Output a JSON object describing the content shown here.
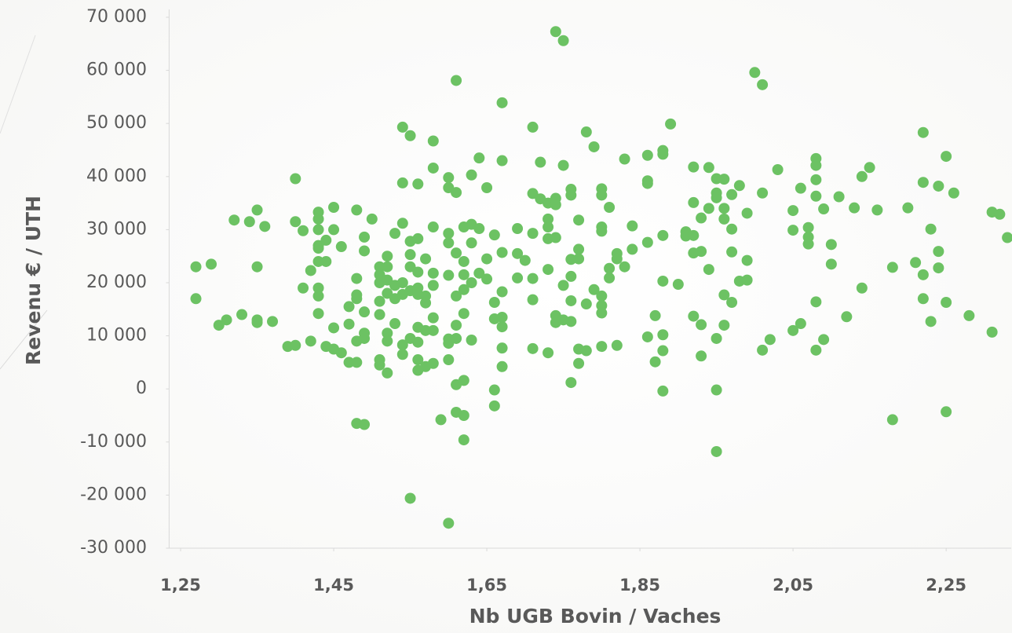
{
  "chart_data": {
    "type": "scatter",
    "x_label": "Nb UGB Bovin / Vaches",
    "y_label": "Revenu € / UTH",
    "color": "#6cc263",
    "xlim": [
      1.235,
      2.335
    ],
    "ylim": [
      -30000,
      70000
    ],
    "xticks": [
      {
        "value": 1.25,
        "label": "1,25"
      },
      {
        "value": 1.45,
        "label": "1,45"
      },
      {
        "value": 1.65,
        "label": "1,65"
      },
      {
        "value": 1.85,
        "label": "1,85"
      },
      {
        "value": 2.05,
        "label": "2,05"
      },
      {
        "value": 2.25,
        "label": "2,25"
      }
    ],
    "yticks": [
      {
        "value": 70000,
        "label": "70 000"
      },
      {
        "value": 60000,
        "label": "60 000"
      },
      {
        "value": 50000,
        "label": "50 000"
      },
      {
        "value": 40000,
        "label": "40 000"
      },
      {
        "value": 30000,
        "label": "30 000"
      },
      {
        "value": 20000,
        "label": "20 000"
      },
      {
        "value": 10000,
        "label": "10 000"
      },
      0,
      {
        "value": -10000,
        "label": "-10 000"
      },
      {
        "value": -20000,
        "label": "-20 000"
      },
      {
        "value": -30000,
        "label": "-30 000"
      }
    ],
    "x": [
      1.27,
      1.27,
      1.29,
      1.3,
      1.31,
      1.32,
      1.33,
      1.34,
      1.35,
      1.35,
      1.35,
      1.35,
      1.36,
      1.37,
      1.39,
      1.4,
      1.4,
      1.4,
      1.41,
      1.41,
      1.42,
      1.42,
      1.43,
      1.43,
      1.43,
      1.43,
      1.43,
      1.43,
      1.43,
      1.43,
      1.43,
      1.44,
      1.44,
      1.44,
      1.45,
      1.45,
      1.45,
      1.45,
      1.46,
      1.46,
      1.47,
      1.47,
      1.47,
      1.48,
      1.48,
      1.48,
      1.48,
      1.48,
      1.48,
      1.48,
      1.49,
      1.49,
      1.49,
      1.49,
      1.49,
      1.49,
      1.5,
      1.51,
      1.51,
      1.51,
      1.51,
      1.51,
      1.51,
      1.51,
      1.52,
      1.52,
      1.52,
      1.52,
      1.52,
      1.52,
      1.52,
      1.53,
      1.53,
      1.53,
      1.53,
      1.54,
      1.54,
      1.54,
      1.54,
      1.54,
      1.54,
      1.54,
      1.55,
      1.55,
      1.55,
      1.55,
      1.55,
      1.55,
      1.55,
      1.56,
      1.56,
      1.56,
      1.56,
      1.56,
      1.56,
      1.56,
      1.56,
      1.56,
      1.57,
      1.57,
      1.57,
      1.57,
      1.57,
      1.58,
      1.58,
      1.58,
      1.58,
      1.58,
      1.58,
      1.58,
      1.58,
      1.59,
      1.6,
      1.6,
      1.6,
      1.6,
      1.6,
      1.6,
      1.6,
      1.6,
      1.6,
      1.61,
      1.61,
      1.61,
      1.61,
      1.61,
      1.61,
      1.61,
      1.61,
      1.62,
      1.62,
      1.62,
      1.62,
      1.62,
      1.62,
      1.62,
      1.62,
      1.63,
      1.63,
      1.63,
      1.63,
      1.63,
      1.64,
      1.64,
      1.64,
      1.65,
      1.65,
      1.65,
      1.66,
      1.66,
      1.66,
      1.66,
      1.66,
      1.67,
      1.67,
      1.67,
      1.67,
      1.67,
      1.67,
      1.67,
      1.67,
      1.69,
      1.69,
      1.69,
      1.7,
      1.71,
      1.71,
      1.71,
      1.71,
      1.71,
      1.71,
      1.72,
      1.72,
      1.73,
      1.73,
      1.73,
      1.73,
      1.73,
      1.73,
      1.74,
      1.74,
      1.74,
      1.74,
      1.74,
      1.74,
      1.75,
      1.75,
      1.75,
      1.75,
      1.76,
      1.76,
      1.76,
      1.76,
      1.76,
      1.76,
      1.76,
      1.77,
      1.77,
      1.77,
      1.77,
      1.77,
      1.78,
      1.78,
      1.78,
      1.79,
      1.79,
      1.8,
      1.8,
      1.8,
      1.8,
      1.8,
      1.8,
      1.8,
      1.8,
      1.81,
      1.81,
      1.81,
      1.82,
      1.82,
      1.82,
      1.83,
      1.83,
      1.84,
      1.84,
      1.86,
      1.86,
      1.86,
      1.86,
      1.86,
      1.87,
      1.87,
      1.88,
      1.88,
      1.88,
      1.88,
      1.88,
      1.88,
      1.88,
      1.89,
      1.9,
      1.91,
      1.91,
      1.92,
      1.92,
      1.92,
      1.92,
      1.92,
      1.93,
      1.93,
      1.93,
      1.93,
      1.94,
      1.94,
      1.94,
      1.95,
      1.95,
      1.95,
      1.95,
      1.95,
      1.95,
      1.96,
      1.96,
      1.96,
      1.96,
      1.96,
      1.97,
      1.97,
      1.97,
      1.97,
      1.98,
      1.98,
      1.99,
      1.99,
      1.99,
      2.0,
      2.01,
      2.01,
      2.01,
      2.02,
      2.03,
      2.05,
      2.05,
      2.05,
      2.06,
      2.06,
      2.07,
      2.07,
      2.07,
      2.08,
      2.08,
      2.08,
      2.08,
      2.08,
      2.08,
      2.09,
      2.09,
      2.1,
      2.1,
      2.11,
      2.12,
      2.13,
      2.14,
      2.14,
      2.15,
      2.16,
      2.18,
      2.18,
      2.2,
      2.21,
      2.22,
      2.22,
      2.22,
      2.22,
      2.23,
      2.23,
      2.24,
      2.24,
      2.24,
      2.25,
      2.25,
      2.25,
      2.26,
      2.28,
      2.31,
      2.31,
      2.32,
      2.33
    ],
    "values": [
      23000,
      17000,
      23500,
      12000,
      13000,
      31800,
      14000,
      31500,
      33700,
      23000,
      13000,
      12500,
      30600,
      12700,
      8000,
      39600,
      31500,
      8200,
      29800,
      19000,
      22300,
      9000,
      33300,
      32000,
      30000,
      27000,
      26500,
      24000,
      19000,
      17500,
      14200,
      28000,
      24000,
      8000,
      34200,
      30000,
      11500,
      7500,
      26800,
      6800,
      15500,
      12200,
      5000,
      33700,
      20800,
      17700,
      17000,
      9000,
      5000,
      -6500,
      28600,
      26000,
      14500,
      10500,
      9500,
      -6700,
      32000,
      23000,
      21500,
      20000,
      16500,
      14000,
      5500,
      4500,
      25000,
      23000,
      20500,
      18000,
      10500,
      9000,
      3000,
      29300,
      19500,
      17000,
      12300,
      49300,
      38800,
      31200,
      20000,
      17800,
      8300,
      6500,
      47700,
      27800,
      25300,
      23000,
      18500,
      9500,
      -20600,
      38600,
      28300,
      22000,
      19000,
      17800,
      11600,
      8800,
      5500,
      3500,
      24500,
      17500,
      16200,
      11000,
      4200,
      46700,
      41600,
      30500,
      21800,
      19500,
      13400,
      11000,
      4800,
      -5800,
      39800,
      37900,
      29300,
      27500,
      21400,
      9400,
      8600,
      5500,
      -25300,
      58100,
      37000,
      25600,
      17500,
      12000,
      9500,
      800,
      -4400,
      30500,
      24000,
      21500,
      18700,
      14200,
      1600,
      -5000,
      -9600,
      40300,
      31000,
      27500,
      20000,
      9200,
      43500,
      30200,
      21800,
      37900,
      24500,
      20700,
      29000,
      16300,
      13200,
      -200,
      -3200,
      53900,
      43000,
      25700,
      18300,
      13500,
      11700,
      7700,
      4200,
      30200,
      25500,
      20900,
      24200,
      49300,
      36800,
      29300,
      20800,
      16800,
      7600,
      42700,
      35800,
      35000,
      32000,
      30500,
      28300,
      22500,
      6800,
      67300,
      35900,
      34700,
      28500,
      13800,
      12500,
      65600,
      42100,
      19500,
      13000,
      37600,
      36500,
      24400,
      21200,
      16600,
      12700,
      1200,
      31800,
      26300,
      24500,
      7500,
      4800,
      48400,
      16000,
      7200,
      45600,
      18700,
      37700,
      36500,
      30500,
      29700,
      17500,
      15700,
      14300,
      8000,
      34200,
      22700,
      20900,
      25500,
      24500,
      8200,
      43300,
      23000,
      30700,
      26300,
      44000,
      39200,
      38700,
      27600,
      9800,
      13800,
      5100,
      44900,
      44200,
      28900,
      20300,
      10200,
      7200,
      -400,
      49900,
      19700,
      29600,
      28800,
      41800,
      35100,
      28900,
      25600,
      13700,
      32200,
      25900,
      12100,
      6200,
      41700,
      34000,
      22500,
      39600,
      36900,
      36000,
      9500,
      -200,
      -11800,
      39500,
      34000,
      32000,
      17700,
      12000,
      36600,
      30100,
      25800,
      16300,
      38300,
      20300,
      33100,
      24200,
      20500,
      59600,
      57300,
      36900,
      7300,
      9300,
      41300,
      33600,
      29900,
      11000,
      37800,
      12300,
      30400,
      28600,
      27300,
      43400,
      42100,
      39400,
      36300,
      16400,
      7300,
      33900,
      9300,
      27200,
      23500,
      36200,
      13600,
      34100,
      40000,
      19000,
      41700,
      33700,
      22900,
      -5800,
      34100,
      23800,
      48300,
      38900,
      21500,
      17000,
      30100,
      12700,
      38200,
      25900,
      22800,
      43800,
      16300,
      -4300,
      36900,
      13800,
      33300,
      10700,
      32900,
      28500
    ]
  }
}
